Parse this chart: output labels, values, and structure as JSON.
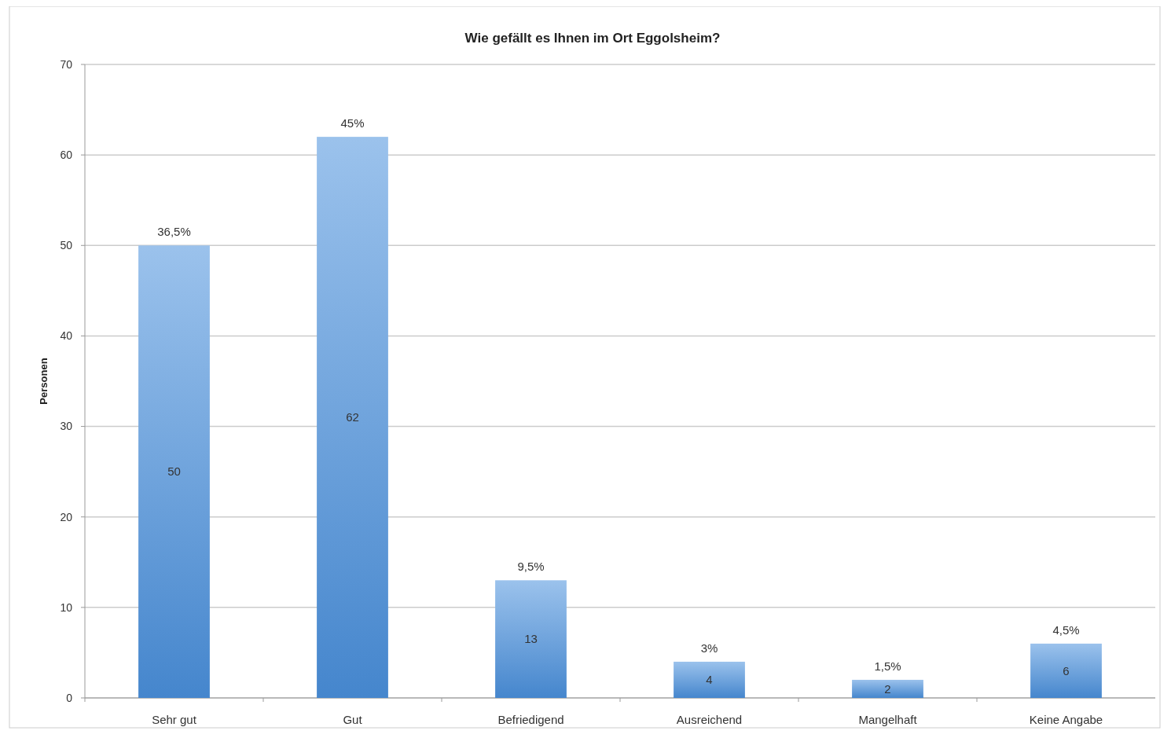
{
  "chart_data": {
    "type": "bar",
    "title": "Wie gefällt es Ihnen im Ort Eggolsheim?",
    "ylabel": "Personen",
    "categories": [
      "Sehr gut",
      "Gut",
      "Befriedigend",
      "Ausreichend",
      "Mangelhaft",
      "Keine Angabe"
    ],
    "values": [
      50,
      62,
      13,
      4,
      2,
      6
    ],
    "annotations": [
      {
        "text": "36,5%",
        "x": "Sehr gut",
        "y": 50
      },
      {
        "text": "45%",
        "x": "Gut",
        "y": 62
      },
      {
        "text": "9,5%",
        "x": "Befriedigend",
        "y": 13
      },
      {
        "text": "3%",
        "x": "Ausreichend",
        "y": 4
      },
      {
        "text": "1,5%",
        "x": "Mangelhaft",
        "y": 2
      },
      {
        "text": "4,5%",
        "x": "Keine Angabe",
        "y": 6
      }
    ],
    "data_labels": true,
    "color": "#4a90dc",
    "ylim": [
      0,
      70
    ],
    "yticks": [
      0,
      10,
      20,
      30,
      40,
      50,
      60,
      70
    ],
    "grid": "y"
  }
}
